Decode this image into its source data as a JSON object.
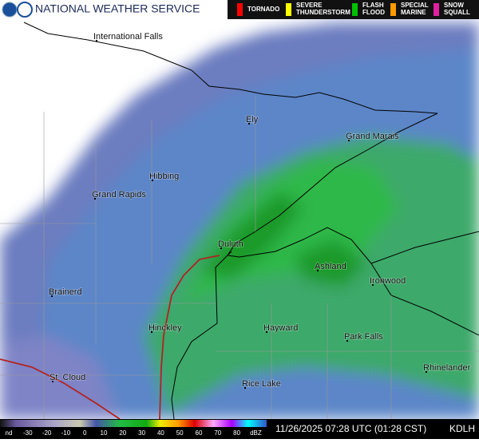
{
  "header": {
    "title": "NATIONAL WEATHER SERVICE",
    "warnings": [
      {
        "lines": [
          "TORNADO"
        ],
        "color": "#ff0000"
      },
      {
        "lines": [
          "SEVERE",
          "THUNDERSTORM"
        ],
        "color": "#ffff00"
      },
      {
        "lines": [
          "FLASH",
          "FLOOD"
        ],
        "color": "#00c000"
      },
      {
        "lines": [
          "SPECIAL",
          "MARINE"
        ],
        "color": "#ff9900"
      },
      {
        "lines": [
          "SNOW",
          "SQUALL"
        ],
        "color": "#e020a0"
      }
    ]
  },
  "cities": [
    "International Falls",
    "Ely",
    "Grand Marais",
    "Hibbing",
    "Grand Rapids",
    "Duluth",
    "Ashland",
    "Ironwood",
    "Brainerd",
    "Hinckley",
    "Hayward",
    "Park Falls",
    "Rhinelander",
    "St. Cloud",
    "Rice Lake"
  ],
  "scale": {
    "labels": [
      "nd",
      -30,
      -20,
      -10,
      0,
      10,
      20,
      30,
      40,
      50,
      60,
      70,
      80,
      "dBZ"
    ]
  },
  "footer": {
    "timestamp": "11/26/2025 07:28 UTC (01:28 CST)",
    "station": "KDLH"
  }
}
